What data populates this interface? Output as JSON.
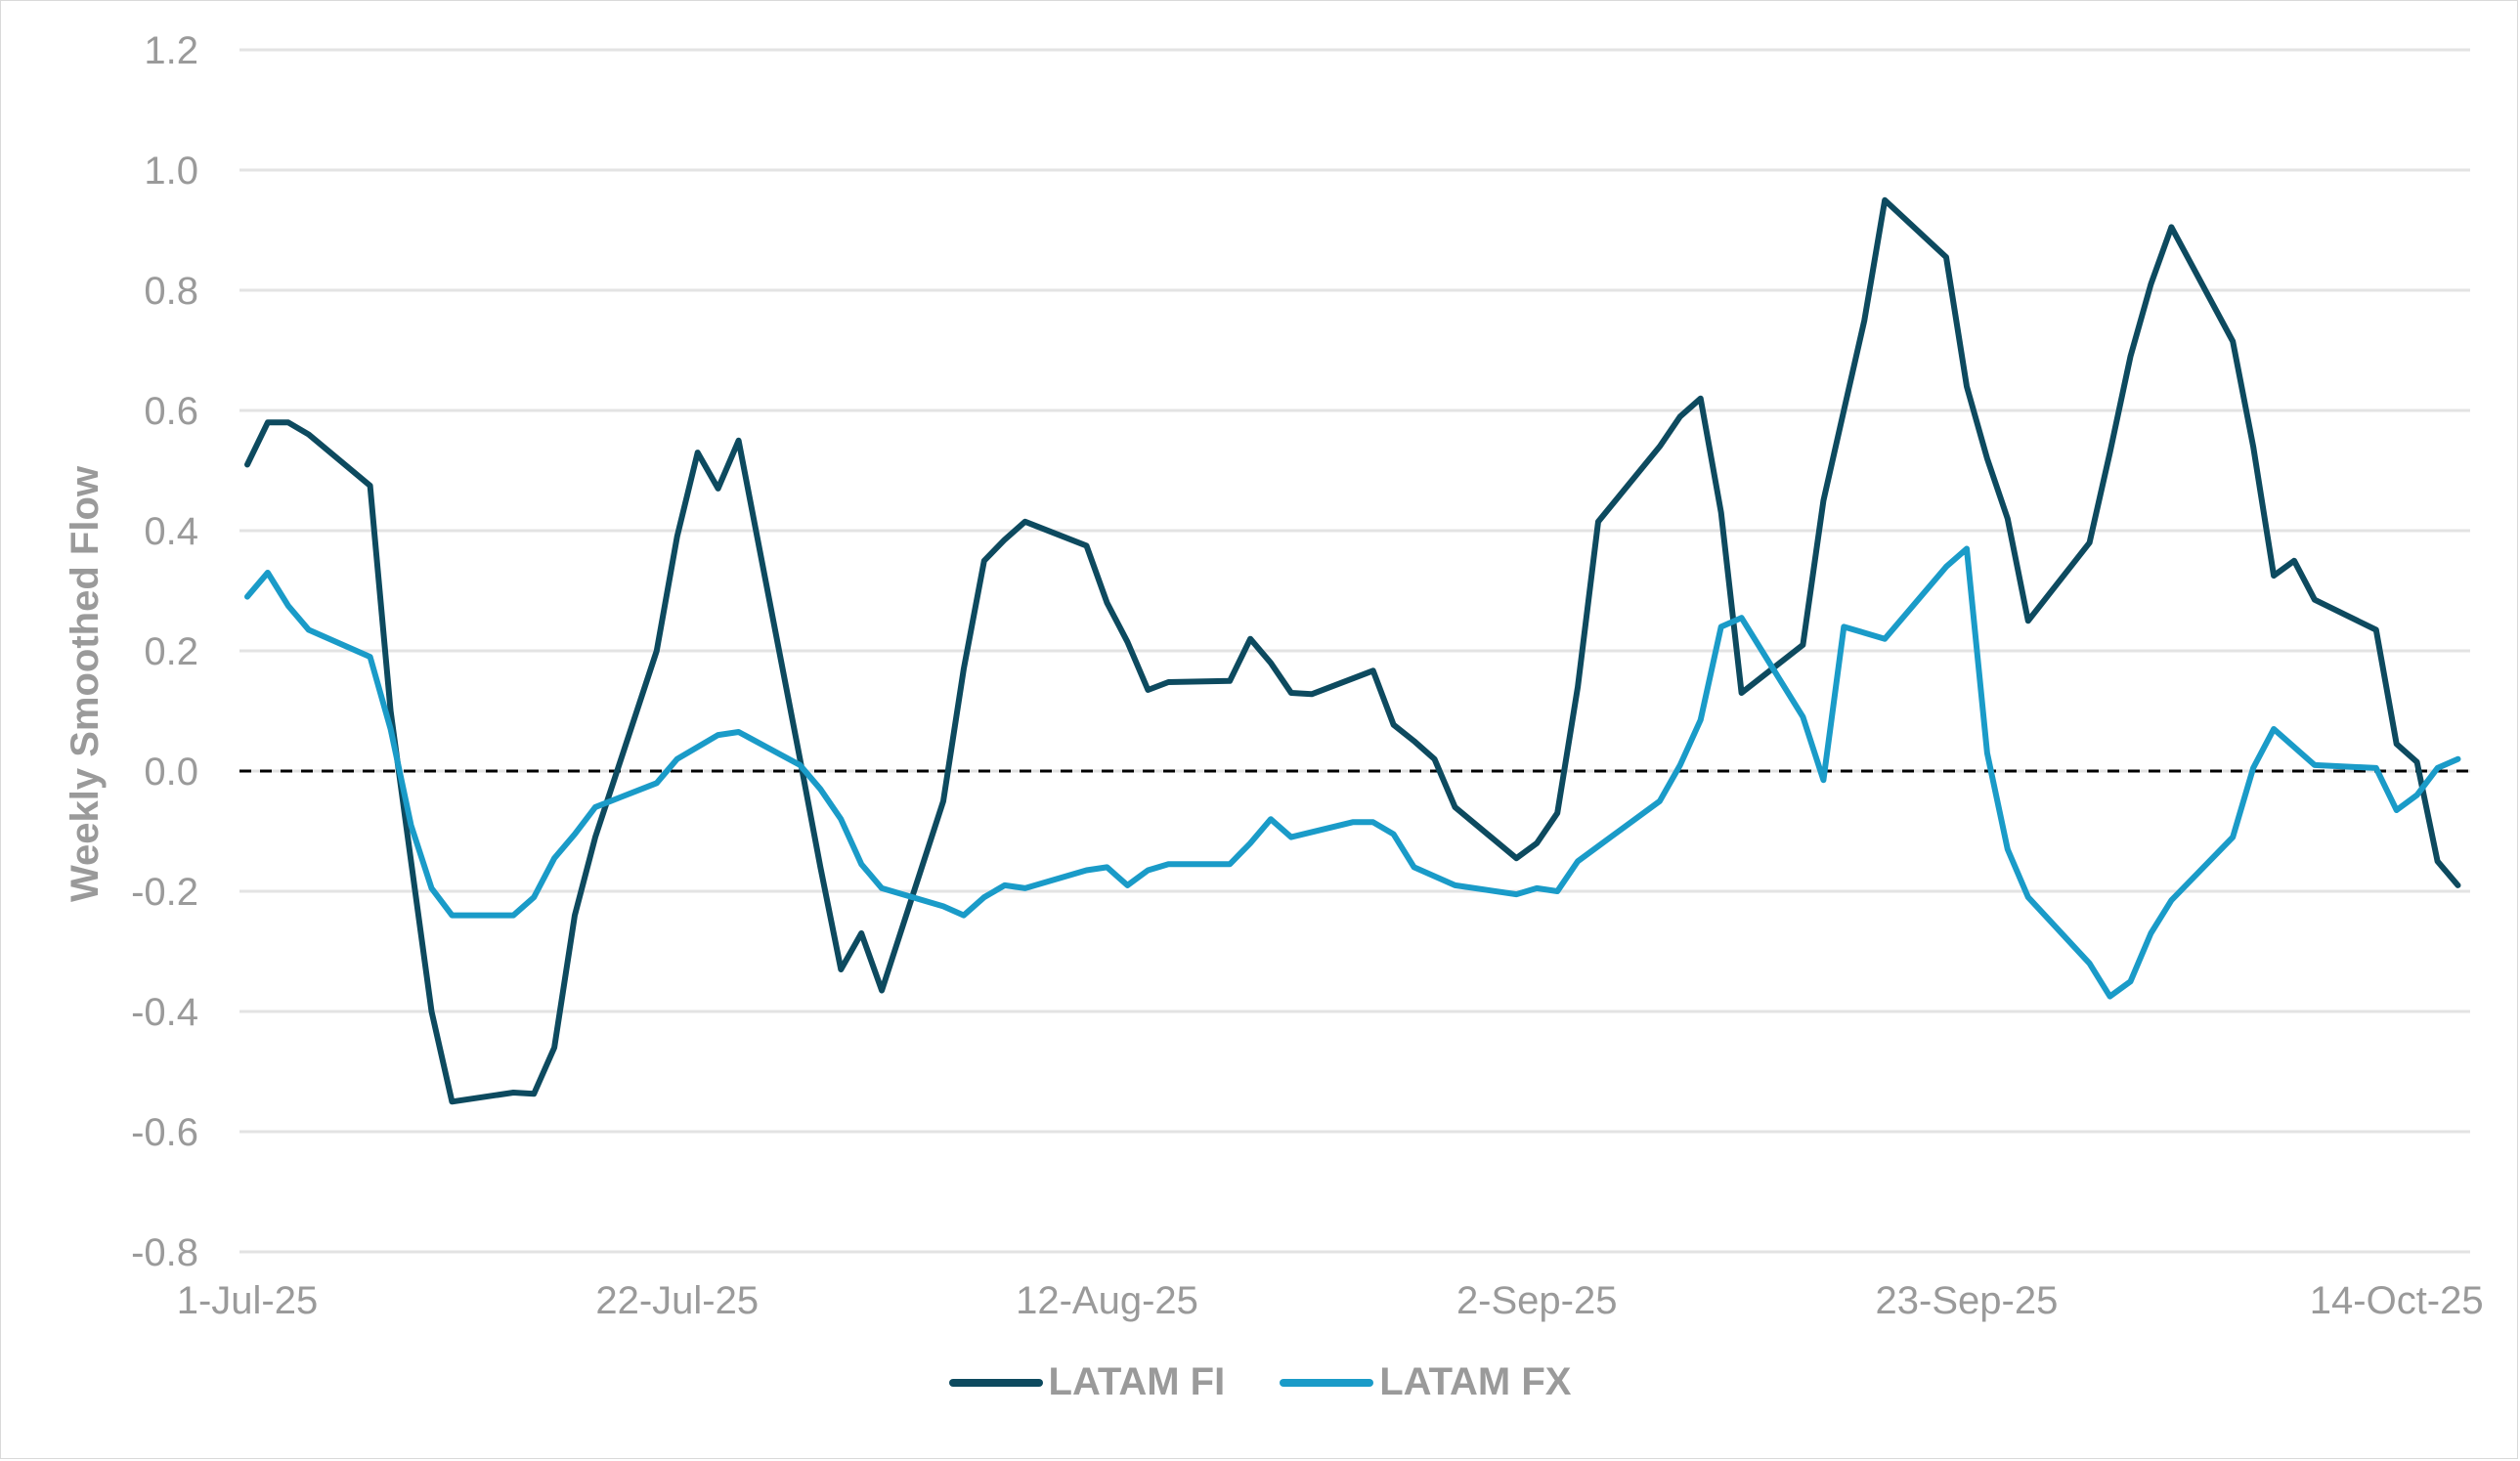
{
  "chart_data": {
    "type": "line",
    "title": "",
    "xlabel": "",
    "ylabel": "Weekly Smoothed Flow",
    "ylim": [
      -0.8,
      1.2
    ],
    "yticks": [
      1.2,
      1.0,
      0.8,
      0.6,
      0.4,
      0.2,
      0.0,
      -0.2,
      -0.4,
      -0.6,
      -0.8
    ],
    "ytick_labels": [
      "1.2",
      "1.0",
      "0.8",
      "0.6",
      "0.4",
      "0.2",
      "0.0",
      "-0.2",
      "-0.4",
      "-0.6",
      "-0.8"
    ],
    "x_start_date": "1-Jul-25",
    "x_unit": "days since 1-Jul-25",
    "xlim": [
      0,
      108
    ],
    "xticks": [
      0,
      21,
      42,
      63,
      84,
      105
    ],
    "xtick_labels": [
      "1-Jul-25",
      "22-Jul-25",
      "12-Aug-25",
      "2-Sep-25",
      "23-Sep-25",
      "14-Oct-25"
    ],
    "grid": "horizontal",
    "zero_line": "dashed black",
    "legend_position": "bottom",
    "series": [
      {
        "name": "LATAM FI",
        "color": "#0d4a5f",
        "x": [
          0,
          1,
          2,
          3,
          6,
          7,
          8,
          9,
          10,
          13,
          14,
          15,
          16,
          17,
          20,
          21,
          22,
          23,
          24,
          27,
          28,
          29,
          30,
          31,
          34,
          35,
          36,
          37,
          38,
          41,
          42,
          43,
          44,
          45,
          48,
          49,
          50,
          51,
          52,
          55,
          56,
          57,
          58,
          59,
          62,
          63,
          64,
          65,
          66,
          69,
          70,
          71,
          72,
          73,
          76,
          77,
          78,
          79,
          80,
          83,
          84,
          85,
          86,
          87,
          90,
          91,
          92,
          93,
          94,
          97,
          98,
          99,
          100,
          101,
          104,
          105,
          106,
          107,
          108
        ],
        "values": [
          0.51,
          0.58,
          0.58,
          0.56,
          0.475,
          0.1,
          -0.15,
          -0.4,
          -0.55,
          -0.535,
          -0.537,
          -0.46,
          -0.24,
          -0.11,
          0.2,
          0.39,
          0.53,
          0.47,
          0.55,
          0.02,
          -0.16,
          -0.33,
          -0.27,
          -0.365,
          -0.05,
          0.17,
          0.35,
          0.385,
          0.415,
          0.375,
          0.28,
          0.215,
          0.135,
          0.148,
          0.15,
          0.22,
          0.18,
          0.13,
          0.128,
          0.167,
          0.077,
          0.05,
          0.02,
          -0.06,
          -0.145,
          -0.12,
          -0.07,
          0.14,
          0.415,
          0.54,
          0.59,
          0.62,
          0.43,
          0.13,
          0.21,
          0.45,
          0.6,
          0.75,
          0.95,
          0.855,
          0.64,
          0.52,
          0.42,
          0.25,
          0.38,
          0.53,
          0.69,
          0.81,
          0.905,
          0.715,
          0.54,
          0.325,
          0.35,
          0.285,
          0.235,
          0.045,
          0.015,
          -0.15,
          -0.19
        ]
      },
      {
        "name": "LATAM FX",
        "color": "#1a9bc8",
        "x": [
          0,
          1,
          2,
          3,
          6,
          7,
          8,
          9,
          10,
          13,
          14,
          15,
          16,
          17,
          20,
          21,
          23,
          24,
          27,
          28,
          29,
          30,
          31,
          34,
          35,
          36,
          37,
          38,
          41,
          42,
          43,
          44,
          45,
          48,
          49,
          50,
          51,
          54,
          55,
          56,
          57,
          59,
          62,
          63,
          64,
          65,
          66,
          69,
          70,
          71,
          72,
          73,
          76,
          77,
          78,
          80,
          83,
          84,
          85,
          86,
          87,
          90,
          91,
          92,
          93,
          94,
          97,
          98,
          99,
          101,
          104,
          105,
          106,
          107,
          108
        ],
        "values": [
          0.29,
          0.33,
          0.275,
          0.235,
          0.19,
          0.07,
          -0.09,
          -0.195,
          -0.24,
          -0.24,
          -0.21,
          -0.145,
          -0.105,
          -0.06,
          -0.02,
          0.02,
          0.06,
          0.065,
          0.01,
          -0.03,
          -0.08,
          -0.155,
          -0.195,
          -0.225,
          -0.24,
          -0.21,
          -0.19,
          -0.195,
          -0.165,
          -0.16,
          -0.19,
          -0.165,
          -0.155,
          -0.155,
          -0.12,
          -0.08,
          -0.11,
          -0.085,
          -0.085,
          -0.105,
          -0.16,
          -0.19,
          -0.205,
          -0.195,
          -0.2,
          -0.15,
          -0.125,
          -0.05,
          0.01,
          0.085,
          0.24,
          0.255,
          0.09,
          -0.015,
          0.24,
          0.22,
          0.34,
          0.37,
          0.03,
          -0.13,
          -0.21,
          -0.32,
          -0.375,
          -0.35,
          -0.27,
          -0.215,
          -0.11,
          0.005,
          0.07,
          0.01,
          0.005,
          -0.065,
          -0.04,
          0.005,
          0.02
        ]
      }
    ]
  },
  "legend": {
    "items": [
      {
        "label": "LATAM FI",
        "color": "#0d4a5f"
      },
      {
        "label": "LATAM FX",
        "color": "#1a9bc8"
      }
    ]
  }
}
